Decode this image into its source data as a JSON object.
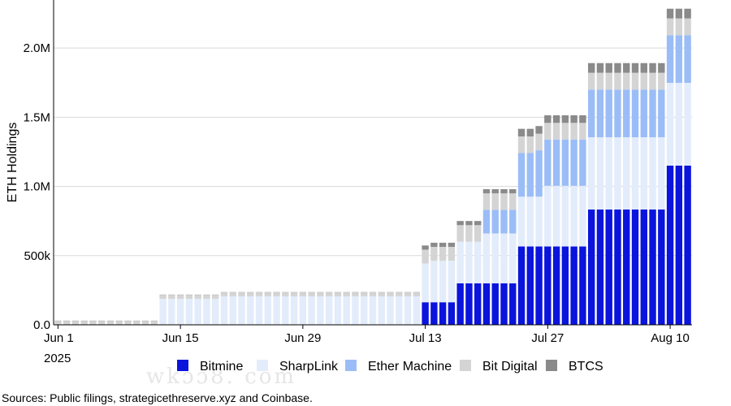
{
  "chart_data": {
    "type": "bar",
    "stacked": true,
    "ylabel": "ETH Holdings",
    "xlabel": "",
    "ylim": [
      0,
      2300000
    ],
    "y_ticks": [
      {
        "value": 0,
        "label": "0.0"
      },
      {
        "value": 500000,
        "label": "500k"
      },
      {
        "value": 1000000,
        "label": "1.0M"
      },
      {
        "value": 1500000,
        "label": "1.5M"
      },
      {
        "value": 2000000,
        "label": "2.0M"
      }
    ],
    "x_ticks": [
      {
        "index": 0,
        "label": "Jun 1",
        "sublabel": "2025"
      },
      {
        "index": 14,
        "label": "Jun 15",
        "sublabel": ""
      },
      {
        "index": 28,
        "label": "Jun 29",
        "sublabel": ""
      },
      {
        "index": 42,
        "label": "Jul 13",
        "sublabel": ""
      },
      {
        "index": 56,
        "label": "Jul 27",
        "sublabel": ""
      },
      {
        "index": 70,
        "label": "Aug 10",
        "sublabel": ""
      }
    ],
    "grid": true,
    "legend_position": "bottom",
    "days": 73,
    "series": [
      {
        "name": "Bitmine",
        "color": "#0a14dc",
        "segments": [
          {
            "from": 0,
            "to": 41,
            "value": 0
          },
          {
            "from": 42,
            "to": 45,
            "value": 163000
          },
          {
            "from": 46,
            "to": 52,
            "value": 300000
          },
          {
            "from": 53,
            "to": 60,
            "value": 566000
          },
          {
            "from": 61,
            "to": 69,
            "value": 833000
          },
          {
            "from": 70,
            "to": 72,
            "value": 1150000
          }
        ]
      },
      {
        "name": "SharpLink",
        "color": "#e3ecfb",
        "segments": [
          {
            "from": 0,
            "to": 11,
            "value": 0
          },
          {
            "from": 12,
            "to": 18,
            "value": 188000
          },
          {
            "from": 19,
            "to": 23,
            "value": 206000
          },
          {
            "from": 24,
            "to": 29,
            "value": 206000
          },
          {
            "from": 30,
            "to": 41,
            "value": 206000
          },
          {
            "from": 42,
            "to": 42,
            "value": 280000
          },
          {
            "from": 43,
            "to": 45,
            "value": 300000
          },
          {
            "from": 46,
            "to": 48,
            "value": 300000
          },
          {
            "from": 49,
            "to": 52,
            "value": 360000
          },
          {
            "from": 53,
            "to": 55,
            "value": 360000
          },
          {
            "from": 56,
            "to": 60,
            "value": 438000
          },
          {
            "from": 61,
            "to": 69,
            "value": 522000
          },
          {
            "from": 70,
            "to": 72,
            "value": 598000
          }
        ]
      },
      {
        "name": "Ether Machine",
        "color": "#9bbdf7",
        "segments": [
          {
            "from": 0,
            "to": 48,
            "value": 0
          },
          {
            "from": 49,
            "to": 52,
            "value": 170000
          },
          {
            "from": 53,
            "to": 54,
            "value": 315000
          },
          {
            "from": 55,
            "to": 60,
            "value": 335000
          },
          {
            "from": 61,
            "to": 69,
            "value": 345000
          },
          {
            "from": 70,
            "to": 70,
            "value": 345000
          },
          {
            "from": 71,
            "to": 72,
            "value": 345000
          }
        ]
      },
      {
        "name": "Bit Digital",
        "color": "#d4d4d4",
        "segments": [
          {
            "from": 0,
            "to": 41,
            "value": 28000
          },
          {
            "from": 42,
            "to": 45,
            "value": 100000
          },
          {
            "from": 46,
            "to": 52,
            "value": 120000
          },
          {
            "from": 53,
            "to": 60,
            "value": 120000
          },
          {
            "from": 61,
            "to": 69,
            "value": 121000
          },
          {
            "from": 70,
            "to": 72,
            "value": 121000
          }
        ]
      },
      {
        "name": "BTCS",
        "color": "#8a8a8a",
        "segments": [
          {
            "from": 0,
            "to": 41,
            "value": 2000
          },
          {
            "from": 42,
            "to": 52,
            "value": 30000
          },
          {
            "from": 53,
            "to": 60,
            "value": 55000
          },
          {
            "from": 61,
            "to": 69,
            "value": 70000
          },
          {
            "from": 70,
            "to": 72,
            "value": 70000
          }
        ]
      }
    ]
  },
  "source_note": "Sources: Public filings, strategicethreserve.xyz and Coinbase."
}
